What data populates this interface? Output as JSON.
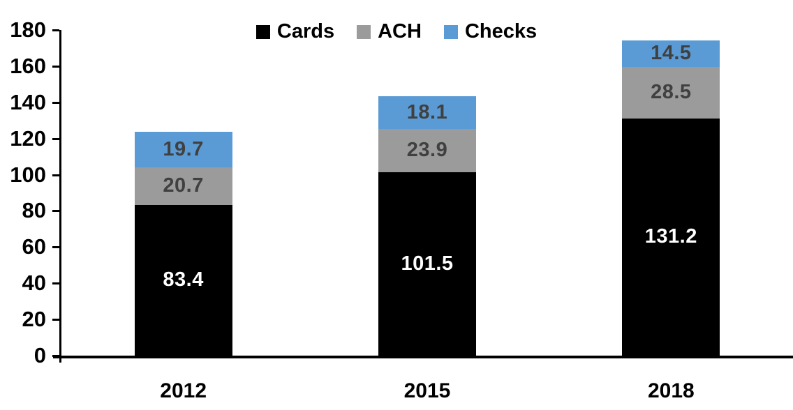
{
  "chart_data": {
    "type": "bar",
    "stacked": true,
    "title": "",
    "xlabel": "",
    "ylabel": "",
    "categories": [
      "2012",
      "2015",
      "2018"
    ],
    "series": [
      {
        "name": "Cards",
        "color": "#000000",
        "label_color": "#ffffff",
        "values": [
          83.4,
          101.5,
          131.2
        ]
      },
      {
        "name": "ACH",
        "color": "#9b9b9b",
        "label_color": "#404040",
        "values": [
          20.7,
          23.9,
          28.5
        ]
      },
      {
        "name": "Checks",
        "color": "#5b9bd5",
        "label_color": "#404040",
        "values": [
          19.7,
          18.1,
          14.5
        ]
      }
    ],
    "totals": [
      123.8,
      143.5,
      174.2
    ],
    "ylim": [
      0,
      180
    ],
    "yticks": [
      0,
      20,
      40,
      60,
      80,
      100,
      120,
      140,
      160,
      180
    ],
    "grid": false,
    "legend_position": "top",
    "axis_color": "#000000"
  }
}
